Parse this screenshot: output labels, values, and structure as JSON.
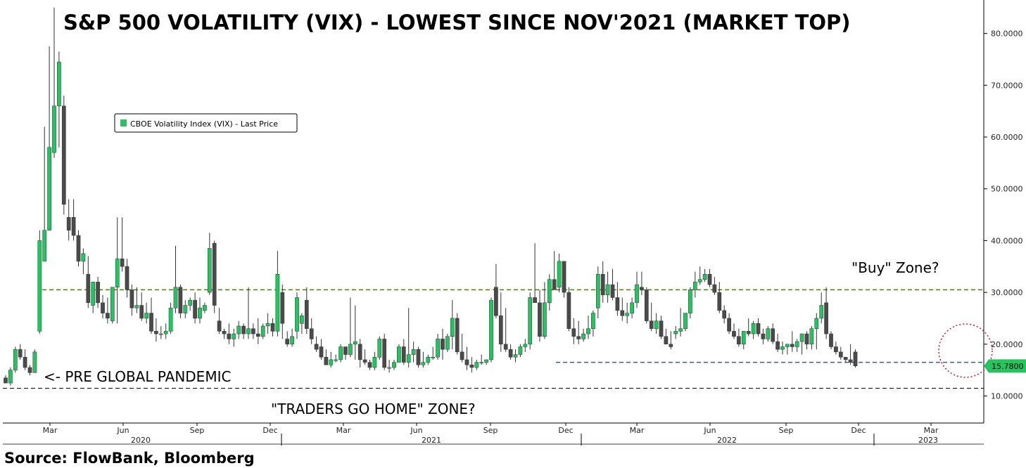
{
  "title": "S&P 500 VOLATILITY (VIX) - LOWEST SINCE NOV'2021 (MARKET TOP)",
  "source": "Source: FlowBank, Bloomberg",
  "legend": {
    "label": "CBOE Volatility Index (VIX) - Last Price",
    "color": "#22c55e"
  },
  "annotations": {
    "buy_zone": "\"Buy\" Zone?",
    "pre_pandemic": "<- PRE GLOBAL PANDEMIC",
    "traders_home": "\"TRADERS GO HOME\" ZONE?"
  },
  "colors": {
    "up": "#22c55e",
    "down": "#4a4a4a",
    "buy_line": "#4d7a1a",
    "low_line": "#2f5fa8",
    "circle": "#c0182b"
  },
  "chart_data": {
    "type": "candlestick",
    "series_name": "CBOE Volatility Index (VIX) - Last Price",
    "frequency": "weekly",
    "ylim": [
      4,
      86
    ],
    "yticks": [
      "10.0000",
      "20.0000",
      "30.0000",
      "40.0000",
      "50.0000",
      "60.0000",
      "70.0000",
      "80.0000"
    ],
    "xticks": [
      "Mar",
      "Jun",
      "Sep",
      "Dec",
      "Mar",
      "Jun",
      "Sep",
      "Dec",
      "Mar",
      "Jun",
      "Sep",
      "Dec",
      "Mar"
    ],
    "years": [
      "2020",
      "2021",
      "2022",
      "2023"
    ],
    "last_price": "15.7800",
    "reference_lines": {
      "buy_zone": 30.5,
      "low_line": 16.5,
      "traders_home": 11.5
    },
    "candles": [
      [
        13.5,
        14.0,
        12.5,
        12.5
      ],
      [
        12.5,
        15.5,
        12.0,
        15.0
      ],
      [
        15.0,
        19.5,
        14.5,
        19.0
      ],
      [
        19.0,
        20.0,
        17.0,
        17.5
      ],
      [
        17.5,
        19.0,
        15.0,
        15.5
      ],
      [
        15.5,
        16.0,
        14.0,
        14.5
      ],
      [
        14.5,
        19.0,
        14.5,
        18.5
      ],
      [
        22.5,
        42.0,
        22.0,
        40.0
      ],
      [
        36.0,
        62.0,
        36.0,
        42.0
      ],
      [
        42.0,
        77.5,
        42.0,
        58.0
      ],
      [
        57.0,
        85.0,
        56.0,
        66.0
      ],
      [
        66.0,
        76.5,
        58.0,
        74.5
      ],
      [
        66.0,
        68.0,
        45.0,
        47.0
      ],
      [
        44.5,
        48.0,
        40.0,
        42.0
      ],
      [
        44.5,
        48.0,
        40.0,
        41.0
      ],
      [
        41.0,
        42.0,
        35.0,
        36.0
      ],
      [
        36.0,
        38.5,
        33.5,
        37.5
      ],
      [
        33.5,
        37.0,
        27.0,
        28.0
      ],
      [
        27.5,
        32.0,
        26.0,
        32.0
      ],
      [
        32.0,
        33.0,
        27.0,
        28.0
      ],
      [
        28.0,
        29.5,
        25.0,
        26.0
      ],
      [
        26.0,
        29.0,
        24.0,
        25.0
      ],
      [
        24.5,
        31.0,
        24.0,
        31.0
      ],
      [
        31.0,
        44.5,
        24.0,
        36.5
      ],
      [
        36.5,
        44.5,
        34.0,
        35.0
      ],
      [
        35.0,
        36.5,
        29.0,
        30.5
      ],
      [
        30.5,
        31.5,
        25.5,
        27.0
      ],
      [
        27.0,
        31.0,
        26.0,
        27.5
      ],
      [
        27.5,
        30.0,
        24.5,
        25.0
      ],
      [
        25.0,
        28.0,
        24.0,
        26.0
      ],
      [
        26.0,
        29.0,
        22.0,
        22.5
      ],
      [
        22.5,
        25.0,
        20.5,
        22.0
      ],
      [
        22.0,
        23.5,
        21.0,
        22.0
      ],
      [
        22.0,
        24.0,
        21.0,
        22.5
      ],
      [
        22.5,
        28.0,
        22.0,
        27.0
      ],
      [
        27.0,
        39.0,
        26.0,
        31.0
      ],
      [
        31.0,
        31.5,
        25.0,
        26.0
      ],
      [
        26.0,
        28.5,
        25.0,
        27.5
      ],
      [
        27.5,
        29.0,
        26.5,
        28.5
      ],
      [
        28.5,
        30.0,
        24.0,
        25.0
      ],
      [
        25.0,
        29.0,
        24.0,
        27.0
      ],
      [
        26.5,
        28.0,
        26.0,
        27.5
      ],
      [
        30.0,
        41.5,
        29.5,
        38.5
      ],
      [
        39.5,
        40.0,
        26.0,
        27.5
      ],
      [
        24.5,
        27.0,
        22.0,
        22.5
      ],
      [
        22.5,
        23.0,
        21.0,
        22.0
      ],
      [
        22.0,
        24.0,
        20.0,
        21.0
      ],
      [
        21.0,
        23.0,
        19.5,
        22.0
      ],
      [
        22.0,
        24.5,
        21.0,
        23.5
      ],
      [
        23.5,
        24.0,
        21.0,
        22.0
      ],
      [
        22.0,
        31.0,
        21.0,
        23.0
      ],
      [
        23.0,
        24.0,
        21.0,
        22.0
      ],
      [
        22.0,
        25.0,
        20.0,
        21.5
      ],
      [
        21.5,
        24.0,
        21.0,
        23.5
      ],
      [
        23.5,
        26.0,
        22.0,
        24.0
      ],
      [
        24.0,
        25.0,
        21.5,
        22.5
      ],
      [
        22.5,
        38.0,
        21.5,
        33.5
      ],
      [
        30.0,
        31.5,
        21.0,
        24.0
      ],
      [
        21.0,
        22.5,
        19.5,
        20.0
      ],
      [
        20.0,
        23.0,
        19.5,
        21.5
      ],
      [
        22.5,
        30.0,
        21.0,
        29.0
      ],
      [
        24.0,
        26.0,
        22.0,
        25.5
      ],
      [
        28.5,
        31.0,
        22.0,
        23.0
      ],
      [
        23.0,
        25.0,
        20.0,
        21.0
      ],
      [
        20.0,
        21.5,
        18.5,
        19.0
      ],
      [
        19.5,
        21.0,
        17.0,
        17.5
      ],
      [
        17.5,
        19.0,
        16.0,
        16.0
      ],
      [
        16.0,
        18.5,
        15.5,
        17.0
      ],
      [
        17.0,
        18.0,
        16.5,
        17.0
      ],
      [
        17.0,
        20.0,
        16.5,
        19.5
      ],
      [
        19.5,
        19.5,
        17.0,
        18.0
      ],
      [
        18.0,
        29.0,
        17.5,
        20.0
      ],
      [
        20.0,
        27.5,
        17.0,
        20.5
      ],
      [
        20.0,
        21.0,
        15.5,
        17.0
      ],
      [
        17.0,
        19.0,
        16.0,
        16.5
      ],
      [
        16.5,
        17.0,
        15.0,
        15.5
      ],
      [
        15.5,
        18.5,
        15.0,
        17.5
      ],
      [
        17.5,
        21.5,
        17.0,
        21.0
      ],
      [
        21.0,
        22.0,
        15.0,
        15.5
      ],
      [
        15.5,
        17.0,
        14.5,
        15.5
      ],
      [
        15.5,
        17.0,
        15.0,
        16.5
      ],
      [
        16.5,
        20.0,
        16.5,
        19.5
      ],
      [
        19.5,
        21.0,
        16.0,
        16.5
      ],
      [
        16.5,
        27.0,
        15.5,
        18.0
      ],
      [
        18.0,
        20.5,
        16.5,
        19.0
      ],
      [
        19.0,
        19.5,
        15.5,
        16.0
      ],
      [
        16.0,
        18.5,
        15.5,
        16.5
      ],
      [
        16.5,
        18.0,
        16.0,
        17.5
      ],
      [
        17.5,
        19.5,
        17.0,
        17.5
      ],
      [
        17.5,
        22.0,
        17.0,
        21.0
      ],
      [
        21.0,
        23.0,
        17.0,
        19.0
      ],
      [
        19.0,
        22.0,
        18.5,
        21.5
      ],
      [
        21.5,
        28.5,
        19.0,
        25.0
      ],
      [
        25.0,
        26.0,
        18.0,
        18.5
      ],
      [
        18.5,
        22.0,
        16.5,
        17.0
      ],
      [
        17.0,
        19.5,
        15.0,
        16.0
      ],
      [
        16.0,
        17.5,
        14.5,
        15.5
      ],
      [
        15.5,
        17.0,
        15.0,
        16.5
      ],
      [
        16.5,
        18.0,
        16.0,
        16.5
      ],
      [
        16.5,
        17.0,
        16.0,
        17.0
      ],
      [
        17.0,
        29.0,
        16.5,
        28.5
      ],
      [
        31.0,
        35.5,
        25.0,
        25.5
      ],
      [
        25.5,
        30.0,
        18.5,
        20.0
      ],
      [
        20.0,
        27.0,
        18.5,
        19.0
      ],
      [
        19.0,
        20.0,
        17.0,
        17.5
      ],
      [
        17.5,
        19.0,
        16.5,
        18.0
      ],
      [
        18.0,
        20.0,
        17.5,
        19.5
      ],
      [
        19.5,
        21.0,
        18.5,
        20.0
      ],
      [
        20.0,
        30.0,
        19.0,
        29.0
      ],
      [
        29.0,
        39.5,
        28.5,
        28.0
      ],
      [
        28.0,
        30.5,
        20.5,
        21.5
      ],
      [
        21.5,
        32.0,
        21.0,
        28.0
      ],
      [
        28.0,
        33.5,
        26.5,
        32.5
      ],
      [
        32.5,
        38.0,
        31.0,
        30.5
      ],
      [
        31.0,
        37.5,
        30.0,
        36.0
      ],
      [
        36.0,
        36.0,
        29.0,
        30.0
      ],
      [
        30.0,
        31.0,
        22.5,
        23.0
      ],
      [
        23.0,
        25.0,
        20.0,
        21.5
      ],
      [
        21.5,
        24.5,
        20.0,
        21.0
      ],
      [
        21.0,
        23.0,
        20.5,
        22.0
      ],
      [
        22.0,
        25.5,
        21.0,
        23.0
      ],
      [
        23.0,
        26.5,
        21.5,
        26.0
      ],
      [
        27.0,
        35.0,
        25.0,
        33.5
      ],
      [
        33.5,
        36.0,
        28.0,
        29.5
      ],
      [
        29.5,
        34.0,
        28.0,
        31.5
      ],
      [
        31.5,
        34.5,
        28.5,
        29.0
      ],
      [
        29.0,
        32.0,
        25.5,
        26.5
      ],
      [
        26.5,
        29.0,
        24.5,
        25.5
      ],
      [
        25.5,
        28.0,
        24.0,
        26.0
      ],
      [
        26.0,
        29.0,
        25.0,
        28.0
      ],
      [
        28.0,
        34.0,
        27.0,
        31.5
      ],
      [
        31.0,
        34.0,
        29.5,
        30.5
      ],
      [
        30.5,
        31.0,
        24.0,
        24.5
      ],
      [
        24.5,
        28.0,
        22.5,
        23.0
      ],
      [
        23.0,
        26.0,
        22.0,
        24.5
      ],
      [
        24.5,
        25.5,
        21.0,
        21.5
      ],
      [
        21.5,
        23.0,
        20.0,
        20.0
      ],
      [
        20.0,
        22.5,
        19.0,
        19.5
      ],
      [
        22.0,
        23.5,
        21.0,
        22.5
      ],
      [
        22.5,
        27.0,
        21.5,
        23.0
      ],
      [
        23.0,
        26.0,
        22.5,
        26.0
      ],
      [
        26.0,
        31.0,
        25.0,
        30.5
      ],
      [
        30.5,
        34.0,
        29.0,
        32.0
      ],
      [
        32.0,
        35.0,
        31.5,
        32.5
      ],
      [
        32.5,
        34.5,
        32.0,
        33.5
      ],
      [
        33.5,
        34.5,
        31.0,
        31.5
      ],
      [
        31.5,
        33.0,
        29.5,
        30.0
      ],
      [
        30.0,
        32.0,
        26.0,
        26.5
      ],
      [
        26.5,
        27.5,
        24.0,
        25.0
      ],
      [
        25.0,
        26.0,
        22.0,
        22.5
      ],
      [
        22.5,
        24.0,
        21.0,
        21.5
      ],
      [
        21.5,
        23.0,
        19.5,
        20.0
      ],
      [
        20.0,
        22.0,
        19.0,
        22.5
      ],
      [
        22.5,
        25.0,
        21.5,
        22.0
      ],
      [
        22.0,
        24.5,
        21.0,
        24.0
      ],
      [
        24.0,
        25.0,
        21.5,
        22.0
      ],
      [
        22.0,
        23.0,
        20.0,
        21.0
      ],
      [
        21.0,
        23.5,
        20.5,
        23.0
      ],
      [
        23.0,
        24.0,
        20.0,
        20.5
      ],
      [
        20.5,
        22.0,
        18.5,
        19.0
      ],
      [
        19.0,
        20.5,
        18.0,
        19.5
      ],
      [
        19.5,
        20.0,
        18.0,
        20.0
      ],
      [
        20.0,
        22.5,
        18.5,
        19.5
      ],
      [
        19.5,
        21.0,
        18.5,
        20.5
      ],
      [
        20.5,
        22.0,
        18.0,
        22.0
      ],
      [
        22.0,
        22.5,
        19.0,
        20.0
      ],
      [
        20.0,
        23.5,
        19.0,
        23.0
      ],
      [
        23.0,
        26.0,
        19.0,
        25.0
      ],
      [
        25.0,
        30.0,
        24.0,
        27.5
      ],
      [
        28.0,
        31.0,
        21.0,
        22.0
      ],
      [
        22.0,
        22.5,
        19.0,
        19.5
      ],
      [
        19.5,
        20.5,
        18.0,
        18.5
      ],
      [
        18.5,
        19.5,
        17.0,
        17.5
      ],
      [
        17.5,
        17.5,
        16.5,
        17.0
      ],
      [
        17.0,
        20.0,
        16.0,
        16.5
      ],
      [
        18.5,
        19.0,
        15.5,
        15.8
      ]
    ]
  }
}
